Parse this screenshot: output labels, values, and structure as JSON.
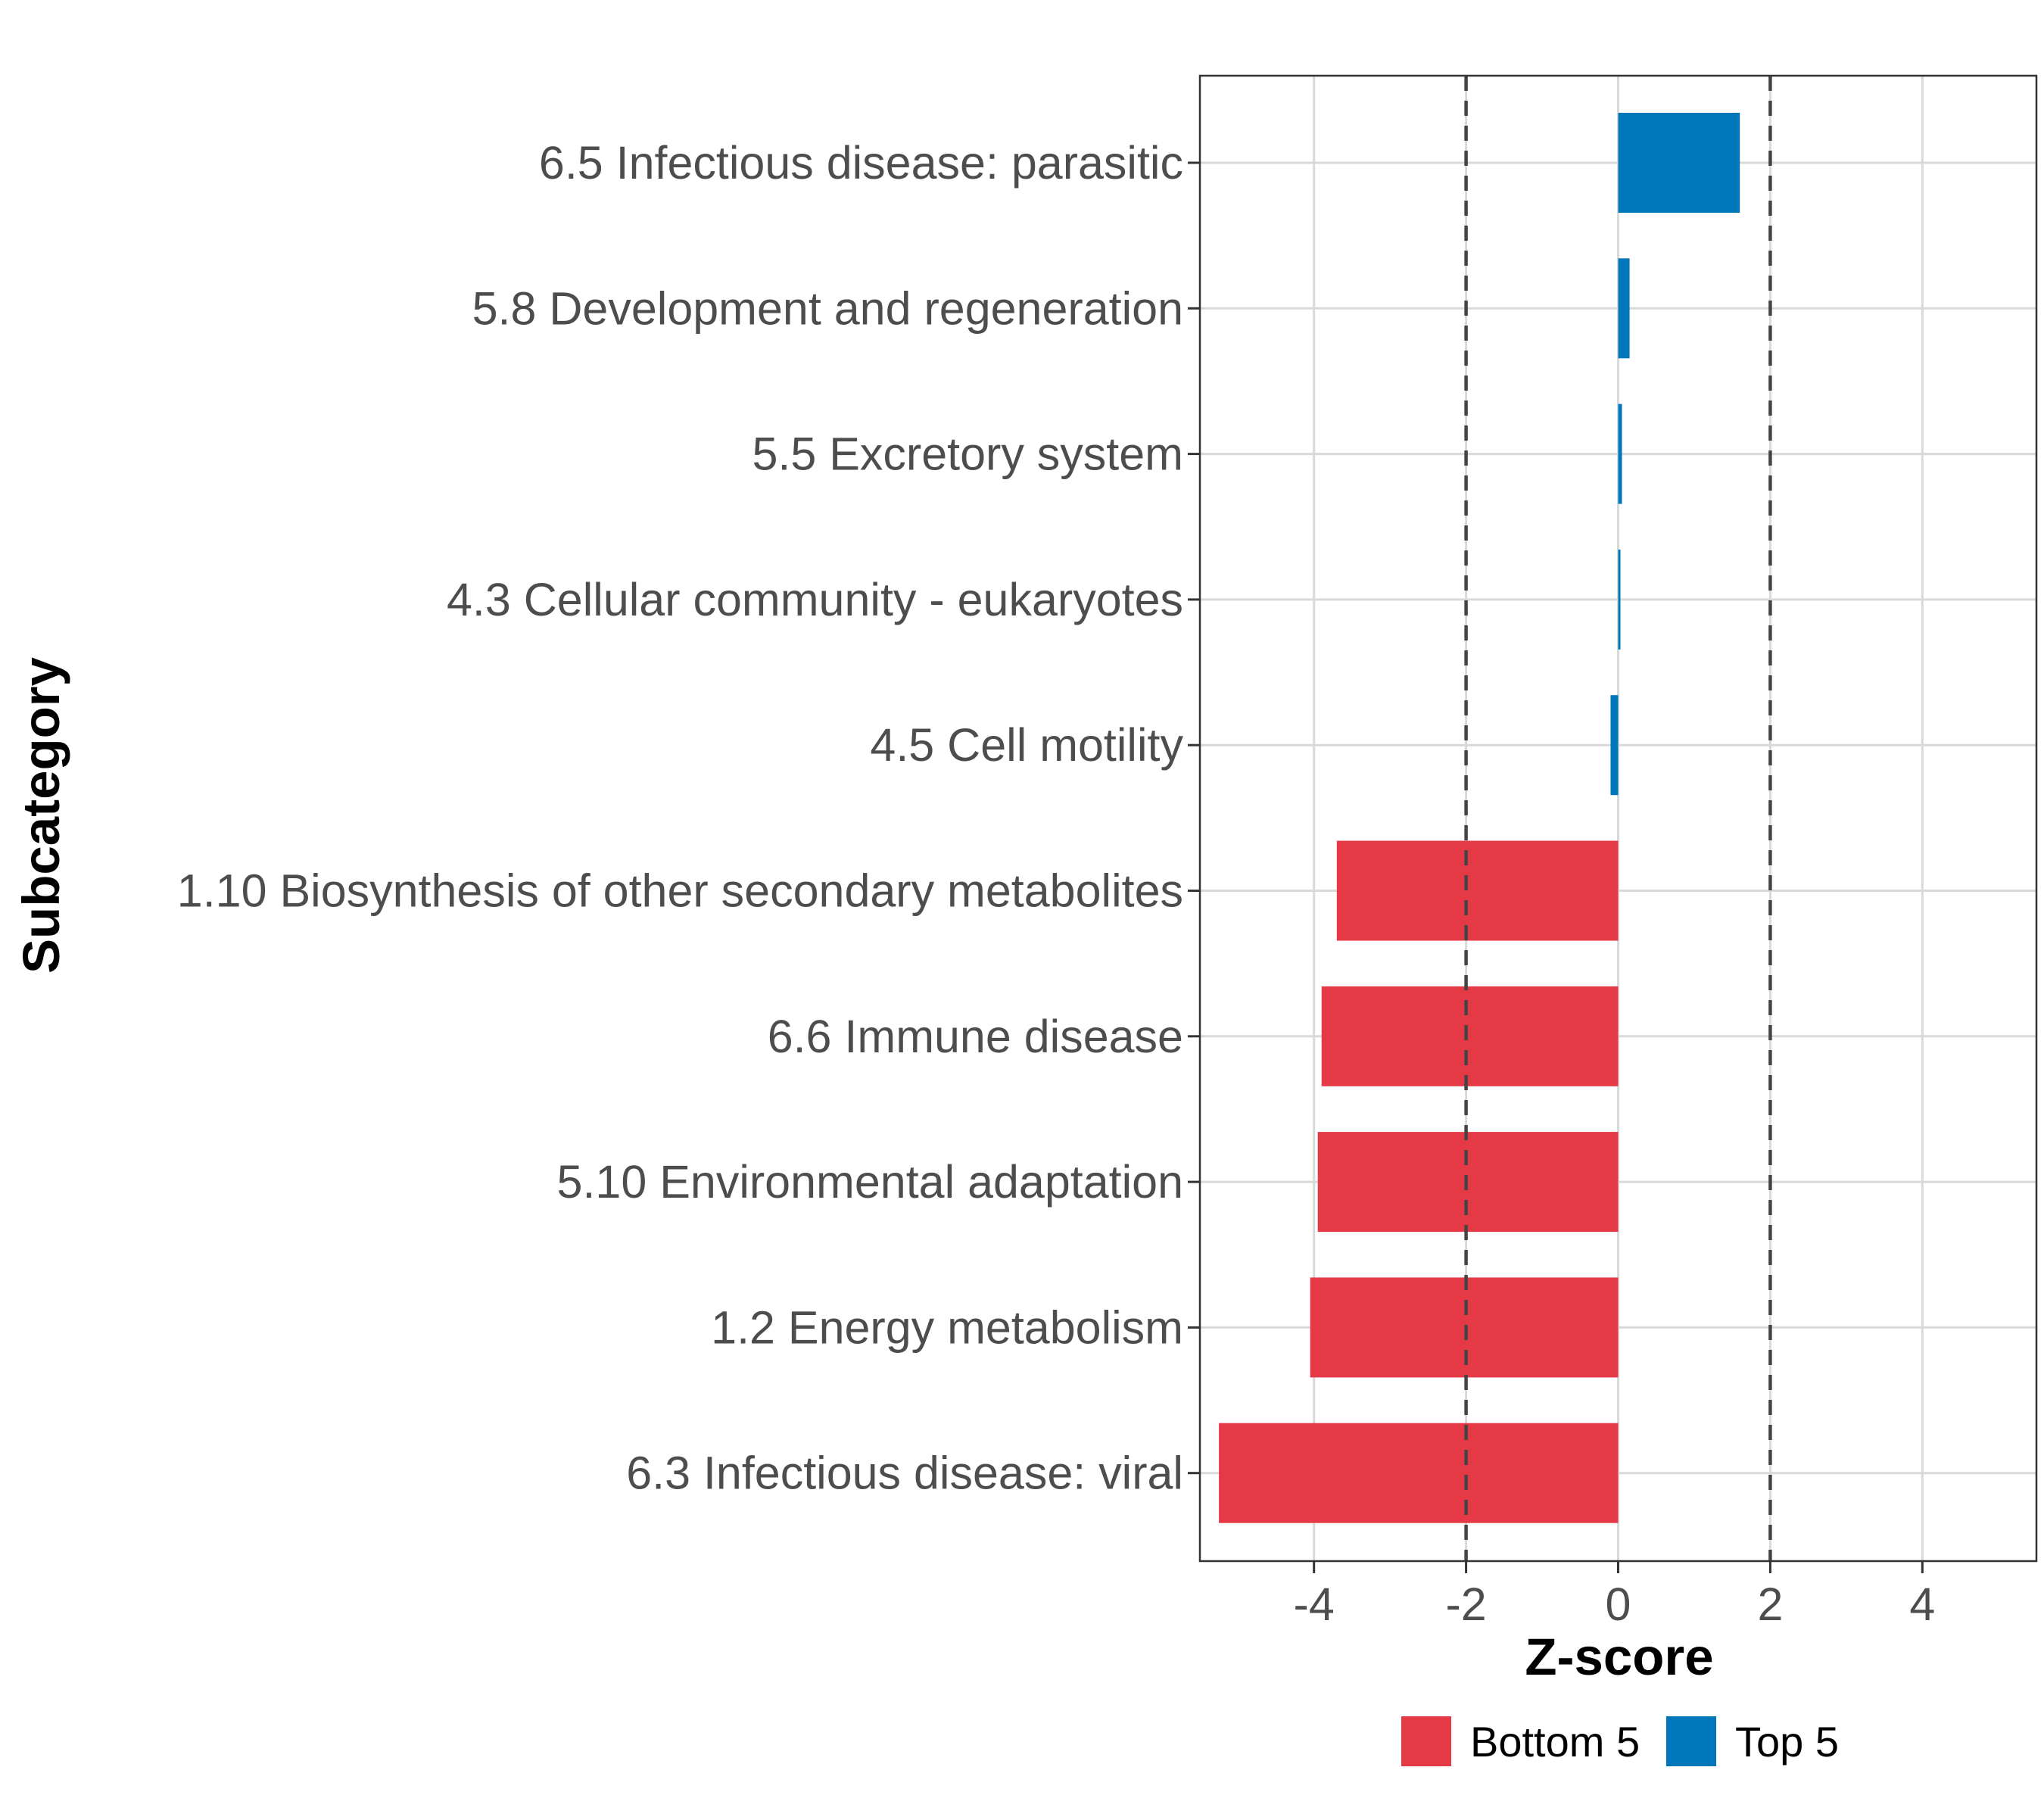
{
  "chart_data": {
    "type": "bar",
    "orientation": "horizontal",
    "xlabel": "Z-score",
    "ylabel": "Subcategory",
    "xlim": [
      -5.5,
      5.5
    ],
    "xticks": [
      -4,
      -2,
      0,
      2,
      4
    ],
    "xtick_labels": [
      "-4",
      "-2",
      "0",
      "2",
      "4"
    ],
    "reference_lines": [
      -2,
      2
    ],
    "grid": true,
    "legend_position": "bottom",
    "colors": {
      "Bottom 5": "#E63946",
      "Top 5": "#0077BB"
    },
    "legend": [
      "Bottom 5",
      "Top 5"
    ],
    "categories": [
      "6.5 Infectious disease: parasitic",
      "5.8 Development and regeneration",
      "5.5 Excretory system",
      "4.3 Cellular community - eukaryotes",
      "4.5 Cell motility",
      "1.10 Biosynthesis of other secondary metabolites",
      "6.6 Immune disease",
      "5.10 Environmental adaptation",
      "1.2 Energy metabolism",
      "6.3 Infectious disease: viral"
    ],
    "values": [
      1.6,
      0.15,
      0.05,
      0.02,
      -0.1,
      -3.7,
      -3.9,
      -3.95,
      -4.05,
      -5.25
    ],
    "groups": [
      "Top 5",
      "Top 5",
      "Top 5",
      "Top 5",
      "Top 5",
      "Bottom 5",
      "Bottom 5",
      "Bottom 5",
      "Bottom 5",
      "Bottom 5"
    ]
  }
}
